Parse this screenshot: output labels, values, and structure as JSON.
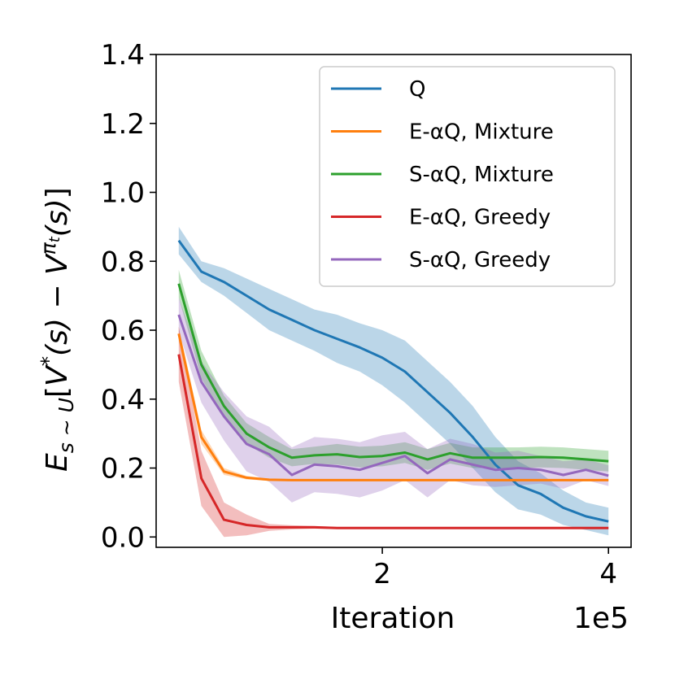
{
  "chart_data": {
    "type": "line",
    "title": "",
    "xlabel": "Iteration",
    "x_offset_label": "1e5",
    "ylabel_parts": {
      "e": "E",
      "sub": "s ~ U",
      "bracket_open": "[",
      "v1": "V",
      "star": "*",
      "s1": "(s) − ",
      "v2": "V",
      "pi": "π",
      "pi_sub": "t",
      "s2": "(s)",
      "bracket_close": "]"
    },
    "xlim": [
      0.0,
      4.2
    ],
    "ylim": [
      -0.03,
      1.4
    ],
    "x_ticks": [
      {
        "value": 2,
        "label": "2"
      },
      {
        "value": 4,
        "label": "4"
      }
    ],
    "y_ticks": [
      {
        "value": 0.0,
        "label": "0.0"
      },
      {
        "value": 0.2,
        "label": "0.2"
      },
      {
        "value": 0.4,
        "label": "0.4"
      },
      {
        "value": 0.6,
        "label": "0.6"
      },
      {
        "value": 0.8,
        "label": "0.8"
      },
      {
        "value": 1.0,
        "label": "1.0"
      },
      {
        "value": 1.2,
        "label": "1.2"
      },
      {
        "value": 1.4,
        "label": "1.4"
      }
    ],
    "legend_position": "top-right",
    "x": [
      0.2,
      0.4,
      0.6,
      0.8,
      1.0,
      1.2,
      1.4,
      1.6,
      1.8,
      2.0,
      2.2,
      2.4,
      2.6,
      2.8,
      3.0,
      3.2,
      3.4,
      3.6,
      3.8,
      4.0
    ],
    "series": [
      {
        "name": "Q",
        "color": "#1f77b4",
        "values": [
          0.86,
          0.77,
          0.74,
          0.7,
          0.66,
          0.63,
          0.6,
          0.575,
          0.55,
          0.52,
          0.48,
          0.42,
          0.36,
          0.29,
          0.21,
          0.15,
          0.125,
          0.085,
          0.06,
          0.045
        ],
        "band": [
          0.04,
          0.03,
          0.04,
          0.05,
          0.06,
          0.06,
          0.06,
          0.07,
          0.07,
          0.08,
          0.09,
          0.09,
          0.09,
          0.09,
          0.08,
          0.07,
          0.06,
          0.05,
          0.04,
          0.04
        ]
      },
      {
        "name": "E-αQ, Mixture",
        "color": "#ff7f0e",
        "values": [
          0.59,
          0.29,
          0.19,
          0.172,
          0.166,
          0.165,
          0.165,
          0.165,
          0.165,
          0.165,
          0.165,
          0.165,
          0.165,
          0.165,
          0.165,
          0.165,
          0.165,
          0.165,
          0.165,
          0.165
        ],
        "band": [
          0.02,
          0.02,
          0.01,
          0.005,
          0.003,
          0.002,
          0.002,
          0.002,
          0.002,
          0.002,
          0.002,
          0.002,
          0.002,
          0.002,
          0.002,
          0.002,
          0.002,
          0.002,
          0.002,
          0.002
        ]
      },
      {
        "name": "S-αQ, Mixture",
        "color": "#2ca02c",
        "values": [
          0.735,
          0.5,
          0.38,
          0.3,
          0.26,
          0.23,
          0.237,
          0.24,
          0.232,
          0.235,
          0.245,
          0.225,
          0.243,
          0.23,
          0.23,
          0.23,
          0.232,
          0.23,
          0.225,
          0.22
        ],
        "band": [
          0.04,
          0.04,
          0.03,
          0.03,
          0.03,
          0.025,
          0.025,
          0.03,
          0.03,
          0.03,
          0.03,
          0.03,
          0.03,
          0.03,
          0.03,
          0.03,
          0.03,
          0.03,
          0.03,
          0.03
        ]
      },
      {
        "name": "E-αQ, Greedy",
        "color": "#d62728",
        "values": [
          0.53,
          0.17,
          0.05,
          0.035,
          0.028,
          0.028,
          0.028,
          0.026,
          0.026,
          0.026,
          0.026,
          0.026,
          0.026,
          0.026,
          0.026,
          0.026,
          0.026,
          0.026,
          0.026,
          0.026
        ],
        "band": [
          0.08,
          0.08,
          0.05,
          0.03,
          0.01,
          0.006,
          0.004,
          0.003,
          0.002,
          0.002,
          0.002,
          0.002,
          0.002,
          0.002,
          0.002,
          0.002,
          0.002,
          0.002,
          0.002,
          0.002
        ]
      },
      {
        "name": "S-αQ, Greedy",
        "color": "#9467bd",
        "values": [
          0.645,
          0.45,
          0.35,
          0.27,
          0.24,
          0.18,
          0.21,
          0.205,
          0.195,
          0.215,
          0.235,
          0.185,
          0.225,
          0.21,
          0.195,
          0.2,
          0.195,
          0.18,
          0.195,
          0.178
        ],
        "band": [
          0.05,
          0.06,
          0.07,
          0.08,
          0.08,
          0.08,
          0.08,
          0.08,
          0.08,
          0.08,
          0.07,
          0.07,
          0.06,
          0.06,
          0.05,
          0.05,
          0.04,
          0.04,
          0.03,
          0.03
        ]
      }
    ]
  }
}
